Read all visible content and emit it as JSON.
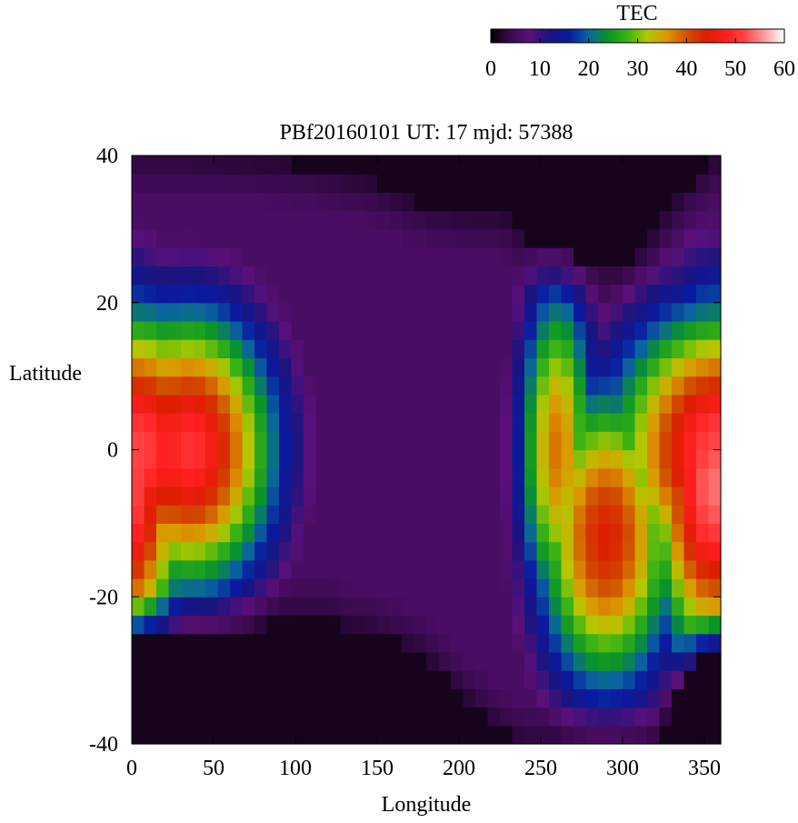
{
  "chart_data": {
    "type": "heatmap",
    "title": "PBf20160101  UT: 17  mjd: 57388",
    "xlabel": "Longitude",
    "ylabel": "Latitude",
    "xlim": [
      0,
      360
    ],
    "ylim": [
      -40,
      40
    ],
    "x_ticks": [
      0,
      50,
      100,
      150,
      200,
      250,
      300,
      350
    ],
    "y_ticks": [
      -40,
      -20,
      0,
      20,
      40
    ],
    "grid": false,
    "colorbar": {
      "label": "TEC",
      "range": [
        0,
        60
      ],
      "ticks": [
        0,
        10,
        20,
        30,
        40,
        50,
        60
      ],
      "placement": "top-right",
      "colors": [
        "#000000",
        "#3a0a4e",
        "#5a107a",
        "#1a147e",
        "#0a1aa0",
        "#0a64a0",
        "#0a9428",
        "#3cb414",
        "#b4c800",
        "#dc9600",
        "#d05000",
        "#dc1e00",
        "#ff1e1e",
        "#ff4646",
        "#ffa0a0",
        "#ffffff"
      ]
    },
    "grid_spec": {
      "lon_step": 7.5,
      "lat_step": 2.5,
      "lon_start": 0,
      "lat_start": -40
    },
    "structure": {
      "features": [
        {
          "lon": 0,
          "lat": 0,
          "peak": 52,
          "dlon": 70,
          "dlat": 20
        },
        {
          "lon": 35,
          "lat": 0,
          "peak": 50,
          "dlon": 55,
          "dlat": 20
        },
        {
          "lon": 355,
          "lat": -5,
          "peak": 54,
          "dlon": 40,
          "dlat": 25
        },
        {
          "lon": 290,
          "lat": -12,
          "peak": 44,
          "dlon": 45,
          "dlat": 22
        },
        {
          "lon": 260,
          "lat": 0,
          "peak": 38,
          "dlon": 25,
          "dlat": 25
        }
      ],
      "background": 6,
      "north_edge": [
        [
          0,
          40
        ],
        [
          30,
          40
        ],
        [
          60,
          39.5
        ],
        [
          90,
          39
        ],
        [
          120,
          38
        ],
        [
          150,
          36
        ],
        [
          180,
          33
        ],
        [
          210,
          32
        ],
        [
          225,
          32
        ],
        [
          240,
          29
        ],
        [
          255,
          27
        ],
        [
          270,
          26
        ],
        [
          285,
          25
        ],
        [
          300,
          25.5
        ],
        [
          315,
          28
        ],
        [
          330,
          33
        ],
        [
          345,
          37
        ],
        [
          360,
          40
        ]
      ],
      "south_edge": [
        [
          0,
          -26
        ],
        [
          30,
          -25
        ],
        [
          60,
          -25
        ],
        [
          90,
          -23
        ],
        [
          120,
          -23
        ],
        [
          150,
          -25
        ],
        [
          180,
          -28
        ],
        [
          200,
          -33
        ],
        [
          220,
          -37
        ],
        [
          240,
          -40
        ],
        [
          320,
          -40
        ],
        [
          335,
          -32
        ],
        [
          350,
          -28
        ],
        [
          360,
          -27
        ]
      ]
    }
  }
}
